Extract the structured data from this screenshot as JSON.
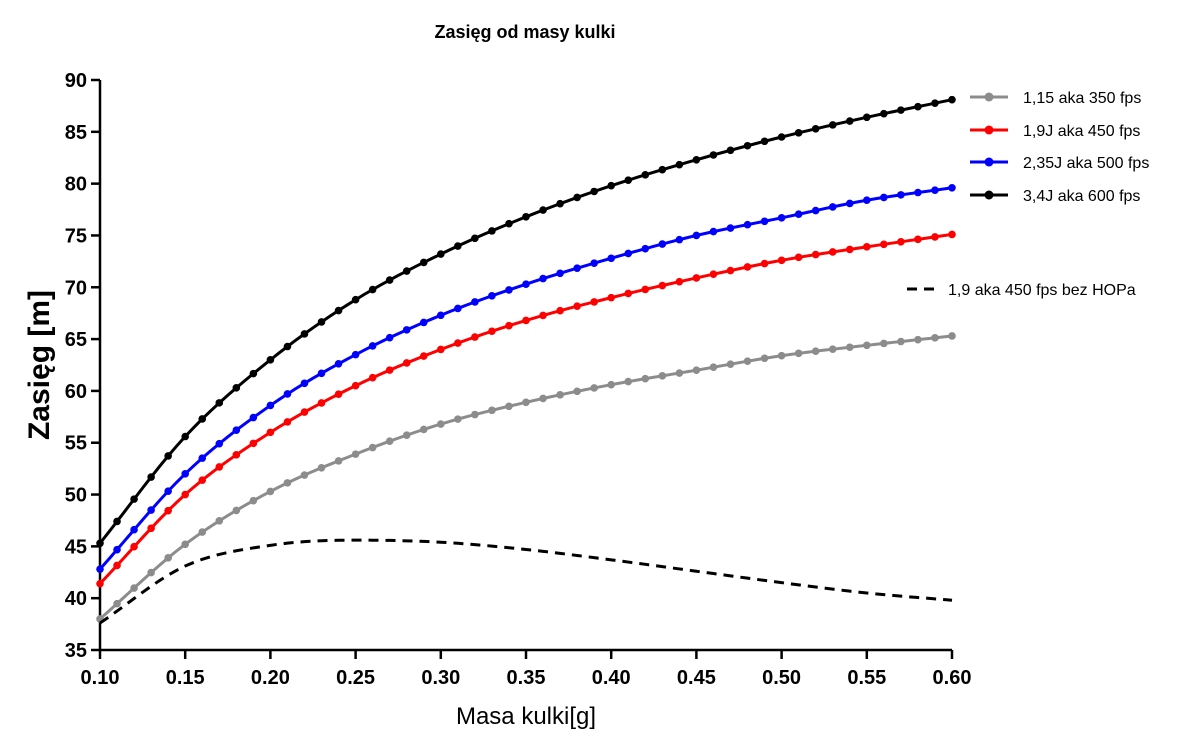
{
  "chart_data": {
    "type": "line",
    "title": "Zasięg od masy kulki",
    "xlabel": "Masa kulki[g]",
    "ylabel": "Zasięg [m]",
    "xlim": [
      0.1,
      0.6
    ],
    "ylim": [
      35,
      90
    ],
    "xticks": [
      "0.10",
      "0.15",
      "0.20",
      "0.25",
      "0.30",
      "0.35",
      "0.40",
      "0.45",
      "0.50",
      "0.55",
      "0.60"
    ],
    "yticks": [
      "35",
      "40",
      "45",
      "50",
      "55",
      "60",
      "65",
      "70",
      "75",
      "80",
      "85",
      "90"
    ],
    "grid": false,
    "legend_position": "right",
    "x": [
      0.1,
      0.15,
      0.2,
      0.25,
      0.3,
      0.35,
      0.4,
      0.45,
      0.5,
      0.55,
      0.6
    ],
    "series": [
      {
        "name": "1,15 aka 350 fps",
        "color": "#8c8c8c",
        "style": "solid-markers",
        "values": [
          38.0,
          45.2,
          50.3,
          53.9,
          56.8,
          58.9,
          60.6,
          62.0,
          63.4,
          64.4,
          65.3
        ]
      },
      {
        "name": "1,9J aka 450 fps",
        "color": "#ff0000",
        "style": "solid-markers",
        "values": [
          41.4,
          50.0,
          56.0,
          60.5,
          64.0,
          66.8,
          69.0,
          70.9,
          72.6,
          73.9,
          75.1
        ]
      },
      {
        "name": "2,35J aka 500 fps",
        "color": "#0000ff",
        "style": "solid-markers",
        "values": [
          42.8,
          52.0,
          58.6,
          63.5,
          67.3,
          70.3,
          72.8,
          75.0,
          76.7,
          78.4,
          79.6
        ]
      },
      {
        "name": "3,4J aka 600 fps",
        "color": "#000000",
        "style": "solid-markers",
        "values": [
          45.3,
          55.6,
          63.0,
          68.8,
          73.2,
          76.8,
          79.8,
          82.3,
          84.5,
          86.4,
          88.1
        ]
      },
      {
        "name": "1,9 aka 450 fps bez HOPa",
        "color": "#000000",
        "style": "dashed",
        "values": [
          37.6,
          43.1,
          45.1,
          45.6,
          45.4,
          44.7,
          43.7,
          42.6,
          41.5,
          40.5,
          39.8
        ]
      }
    ]
  }
}
